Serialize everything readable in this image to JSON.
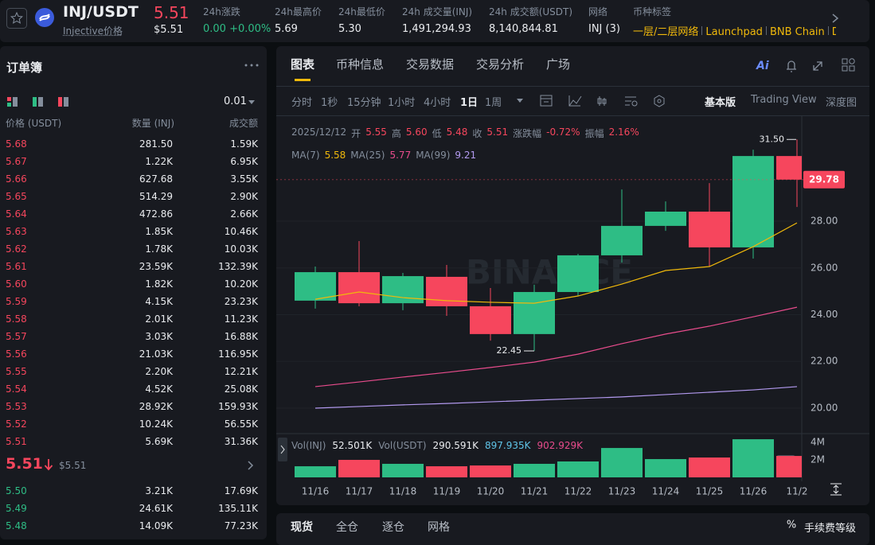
{
  "header": {
    "pair": "INJ/USDT",
    "price": "5.51",
    "name": "Injective价格",
    "usd_price": "$5.51",
    "stats": [
      {
        "label": "24h涨跌",
        "value": "0.00 +0.00%"
      },
      {
        "label": "24h最高价",
        "value": "5.69"
      },
      {
        "label": "24h最低价",
        "value": "5.30"
      },
      {
        "label": "24h 成交量(INJ)",
        "value": "1,491,294.93"
      },
      {
        "label": "24h 成交额(USDT)",
        "value": "8,140,844.81"
      },
      {
        "label": "网络",
        "value": "INJ (3)"
      }
    ],
    "tags_label": "币种标签",
    "tags": [
      "一层/二层网络",
      "Launchpad",
      "BNB Chain",
      "De"
    ]
  },
  "orderbook": {
    "title": "订单簿",
    "precision": "0.01",
    "columns": [
      "价格 (USDT)",
      "数量 (INJ)",
      "成交额"
    ],
    "asks": [
      [
        "5.68",
        "281.50",
        "1.59K"
      ],
      [
        "5.67",
        "1.22K",
        "6.95K"
      ],
      [
        "5.66",
        "627.68",
        "3.55K"
      ],
      [
        "5.65",
        "514.29",
        "2.90K"
      ],
      [
        "5.64",
        "472.86",
        "2.66K"
      ],
      [
        "5.63",
        "1.85K",
        "10.46K"
      ],
      [
        "5.62",
        "1.78K",
        "10.03K"
      ],
      [
        "5.61",
        "23.59K",
        "132.39K"
      ],
      [
        "5.60",
        "1.82K",
        "10.20K"
      ],
      [
        "5.59",
        "4.15K",
        "23.23K"
      ],
      [
        "5.58",
        "2.01K",
        "11.23K"
      ],
      [
        "5.57",
        "3.03K",
        "16.88K"
      ],
      [
        "5.56",
        "21.03K",
        "116.95K"
      ],
      [
        "5.55",
        "2.20K",
        "12.21K"
      ],
      [
        "5.54",
        "4.52K",
        "25.08K"
      ],
      [
        "5.53",
        "28.92K",
        "159.93K"
      ],
      [
        "5.52",
        "10.24K",
        "56.55K"
      ],
      [
        "5.51",
        "5.69K",
        "31.36K"
      ]
    ],
    "last_price": "5.51",
    "last_usd": "$5.51",
    "bids": [
      [
        "5.50",
        "3.21K",
        "17.69K"
      ],
      [
        "5.49",
        "24.61K",
        "135.11K"
      ],
      [
        "5.48",
        "14.09K",
        "77.23K"
      ]
    ]
  },
  "chart_panel": {
    "tabs": [
      "图表",
      "币种信息",
      "交易数据",
      "交易分析",
      "广场"
    ],
    "intervals": [
      "分时",
      "1秒",
      "15分钟",
      "1小时",
      "4小时",
      "1日",
      "1周"
    ],
    "views": [
      "基本版",
      "Trading View",
      "深度图"
    ],
    "info": {
      "date": "2025/12/12",
      "items": [
        {
          "label": "开",
          "value": "5.55"
        },
        {
          "label": "高",
          "value": "5.60"
        },
        {
          "label": "低",
          "value": "5.48"
        },
        {
          "label": "收",
          "value": "5.51"
        },
        {
          "label": "涨跌幅",
          "value": "-0.72%"
        },
        {
          "label": "振幅",
          "value": "2.16%"
        }
      ]
    },
    "ma_values": [
      "5.58",
      "5.77",
      "9.21"
    ],
    "vol_legend": [
      {
        "text": "Vol(INJ)",
        "color": "#848e9c"
      },
      {
        "text": "52.501K",
        "color": "#eaecef"
      },
      {
        "text": "Vol(USDT)",
        "color": "#848e9c"
      },
      {
        "text": "290.591K",
        "color": "#eaecef"
      },
      {
        "text": "897.935K",
        "color": "#5fc4e8"
      },
      {
        "text": "902.929K",
        "color": "#e84c8c"
      }
    ],
    "watermark": "BINANCE"
  },
  "chart_data": {
    "type": "candlestick",
    "categories": [
      "11/16",
      "11/17",
      "11/18",
      "11/19",
      "11/20",
      "11/21",
      "11/22",
      "11/23",
      "11/24",
      "11/25",
      "11/26",
      "11/2"
    ],
    "open": [
      24.6,
      25.82,
      24.49,
      25.62,
      24.36,
      23.17,
      24.97,
      26.54,
      27.8,
      28.41,
      26.88,
      30.79
    ],
    "high": [
      26.06,
      27.15,
      25.79,
      26.13,
      25.14,
      25.28,
      26.6,
      29.36,
      28.85,
      29.63,
      31.06,
      31.5
    ],
    "low": [
      24.26,
      24.36,
      24.19,
      23.95,
      22.89,
      22.45,
      24.8,
      26.23,
      27.59,
      26.06,
      26.4,
      28.61
    ],
    "close": [
      25.82,
      24.49,
      25.65,
      24.36,
      23.17,
      24.97,
      26.54,
      27.8,
      28.41,
      26.88,
      30.79,
      29.78
    ],
    "up_color": "#2ebd85",
    "down_color": "#f6465d",
    "ylim": [
      19.08,
      32.36
    ],
    "yticks": [
      {
        "value": 20,
        "label": "20.00"
      },
      {
        "value": 22,
        "label": "22.00"
      },
      {
        "value": 24,
        "label": "24.00"
      },
      {
        "value": 26,
        "label": "26.00"
      },
      {
        "value": 28,
        "label": "28.00"
      }
    ],
    "grid": true,
    "series": [
      {
        "name": "MA(7)",
        "color": "#f0b90b",
        "values": [
          24.66,
          24.97,
          24.73,
          24.6,
          24.53,
          24.49,
          24.8,
          25.31,
          25.89,
          26.06,
          26.91,
          27.93
        ]
      },
      {
        "name": "MA(25)",
        "color": "#e84c8c",
        "values": [
          20.92,
          21.12,
          21.33,
          21.53,
          21.74,
          21.97,
          22.31,
          22.76,
          23.17,
          23.51,
          23.91,
          24.32
        ]
      },
      {
        "name": "MA(99)",
        "color": "#b39af0",
        "values": [
          20.0,
          20.07,
          20.14,
          20.2,
          20.27,
          20.34,
          20.41,
          20.48,
          20.58,
          20.68,
          20.78,
          20.92
        ]
      }
    ],
    "annotations": {
      "max": "31.50",
      "min": "22.45",
      "last": "29.78"
    },
    "volume": {
      "values": [
        1.27,
        2.0,
        1.55,
        1.27,
        1.36,
        1.55,
        1.82,
        3.36,
        2.09,
        2.27,
        4.36,
        2.45
      ],
      "ylim": [
        0,
        4.73
      ],
      "yticks": [
        {
          "value": 2,
          "label": "2M"
        },
        {
          "value": 4,
          "label": "4M"
        }
      ]
    }
  },
  "bottom": {
    "tabs": [
      "现货",
      "全仓",
      "逐仓",
      "网格"
    ],
    "fee": "手续费等级"
  }
}
